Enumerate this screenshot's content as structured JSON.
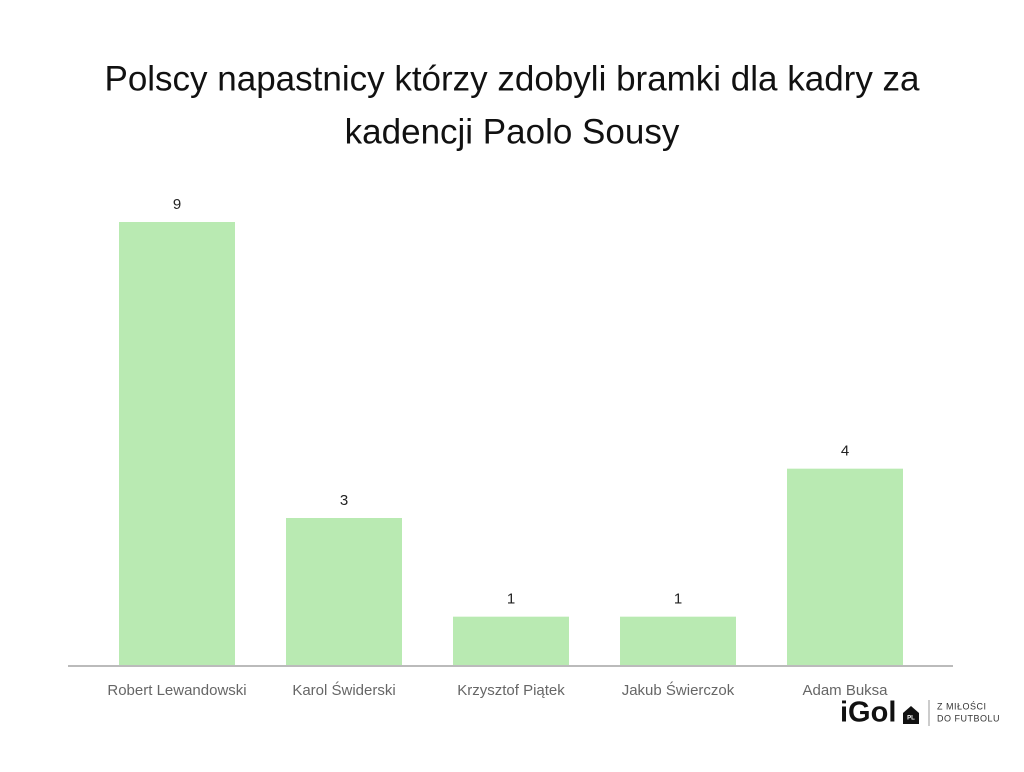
{
  "chart_data": {
    "type": "bar",
    "title": [
      "Polscy napastnicy którzy zdobyli bramki dla kadry za",
      "kadencji Paolo Sousy"
    ],
    "categories": [
      "Robert Lewandowski",
      "Karol Świderski",
      "Krzysztof Piątek",
      "Jakub Świerczok",
      "Adam Buksa"
    ],
    "values": [
      9,
      3,
      1,
      1,
      4
    ],
    "color": "#b9eab2",
    "ylim": [
      0,
      9
    ]
  },
  "logo": {
    "name": "iGol",
    "badge": "PL",
    "tagline": [
      "Z MIŁOŚCI",
      "DO FUTBOLU"
    ]
  }
}
